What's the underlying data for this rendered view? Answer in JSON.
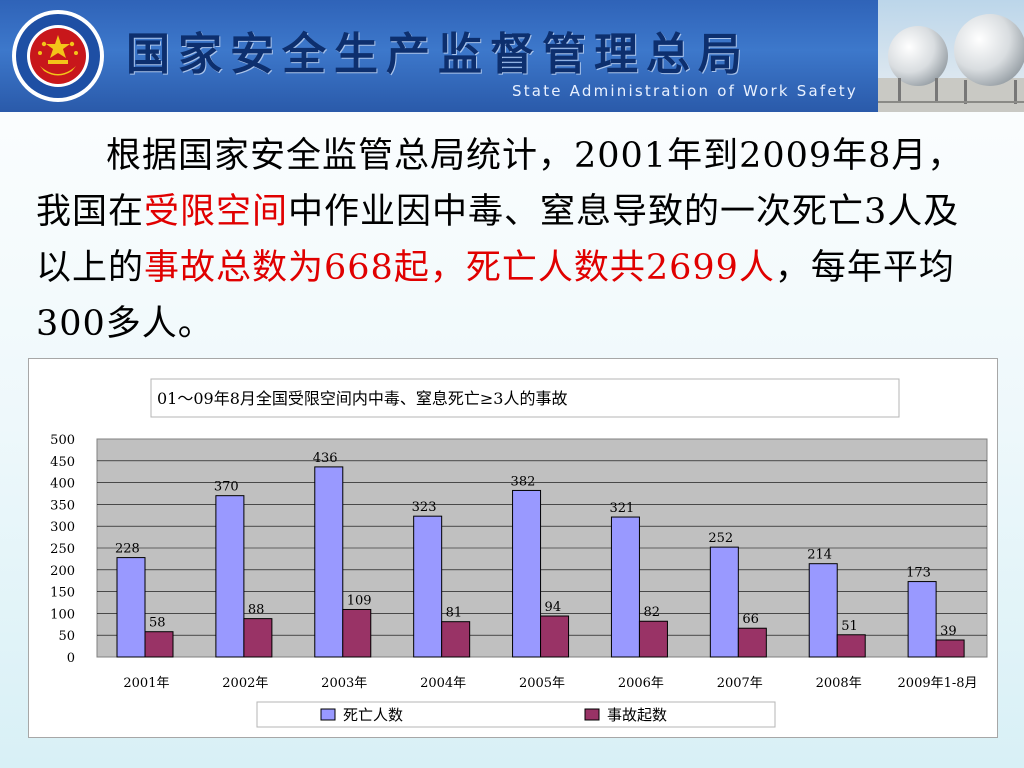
{
  "header": {
    "title_cn": "国家安全生产监督管理总局",
    "title_en": "State Administration of Work Safety",
    "emblem_text": "国家安全生产监督管理总局 STATE ADMINISTRATION OF WORK SAFETY",
    "colors": {
      "banner": "#3d78cb",
      "title": "#0d2f6e"
    }
  },
  "statement": {
    "part1": "根据国家安全监管总局统计，2001年到2009年8月，我国在",
    "hl1": "受限空间",
    "part2": "中作业因中毒、窒息导致的一次死亡3人及以上的",
    "hl2": "事故总数为668起，死亡人数共2699人",
    "part3": "，每年平均300多人。",
    "highlight_color": "#e00000"
  },
  "chart_data": {
    "type": "bar",
    "title": "01～09年8月全国受限空间内中毒、窒息死亡≥3人的事故",
    "categories": [
      "2001年",
      "2002年",
      "2003年",
      "2004年",
      "2005年",
      "2006年",
      "2007年",
      "2008年",
      "2009年1-8月"
    ],
    "series": [
      {
        "name": "死亡人数",
        "values": [
          228,
          370,
          436,
          323,
          382,
          321,
          252,
          214,
          173
        ],
        "color": "#9999ff"
      },
      {
        "name": "事故起数",
        "values": [
          58,
          88,
          109,
          81,
          94,
          82,
          66,
          51,
          39
        ],
        "color": "#993366"
      }
    ],
    "ylim": [
      0,
      500
    ],
    "yticks": [
      0,
      50,
      100,
      150,
      200,
      250,
      300,
      350,
      400,
      450,
      500
    ],
    "grid": true,
    "legend": "bottom",
    "plot_background": "#c0c0c0"
  }
}
